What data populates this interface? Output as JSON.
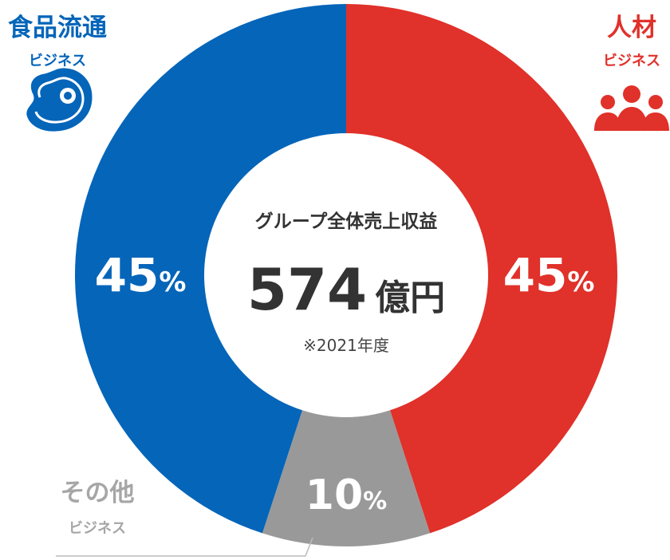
{
  "chart_data": {
    "type": "pie",
    "categories": [
      "人材ビジネス",
      "その他ビジネス",
      "食品流通ビジネス"
    ],
    "values": [
      45,
      10,
      45
    ],
    "value_labels": [
      "45",
      "10",
      "45"
    ],
    "percent_symbol": "%",
    "colors": [
      "#e0312a",
      "#999999",
      "#0465b9"
    ],
    "center": {
      "title": "グループ全体売上収益",
      "value": "574",
      "unit": "億円",
      "note": "※2021年度"
    },
    "legend": {
      "food": {
        "title": "食品流通",
        "sub": "ビジネス",
        "color": "#0465b9",
        "icon": "meat-icon"
      },
      "hr": {
        "title": "人材",
        "sub": "ビジネス",
        "color": "#e0312a",
        "icon": "people-icon"
      },
      "other": {
        "title": "その他",
        "sub": "ビジネス",
        "color": "#a6a6a6"
      }
    }
  }
}
